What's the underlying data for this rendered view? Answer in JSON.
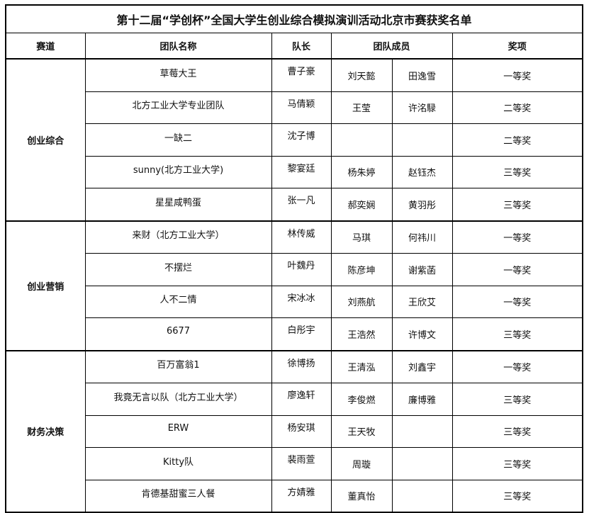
{
  "title": "第十二届“学创杯”全国大学生创业综合模拟演训活动北京市赛获奖名单",
  "headers": {
    "track": "赛道",
    "team": "团队名称",
    "captain": "队长",
    "members": "团队成员",
    "award": "奖项"
  },
  "groups": [
    {
      "track": "创业综合",
      "rows": [
        {
          "team": "草莓大王",
          "captain": "曹子豪",
          "m1": "刘天懿",
          "m2": "田逸雪",
          "award": "一等奖"
        },
        {
          "team": "北方工业大学专业团队",
          "captain": "马倩颖",
          "m1": "王莹",
          "m2": "许洺騄",
          "award": "二等奖"
        },
        {
          "team": "一缺二",
          "captain": "沈子博",
          "m1": "",
          "m2": "",
          "award": "二等奖"
        },
        {
          "team": "sunny(北方工业大学)",
          "captain": "黎宴廷",
          "m1": "杨朱婷",
          "m2": "赵钰杰",
          "award": "三等奖"
        },
        {
          "team": "星星咸鸭蛋",
          "captain": "张一凡",
          "m1": "郝奕娴",
          "m2": "黄羽彤",
          "award": "三等奖"
        }
      ]
    },
    {
      "track": "创业营销",
      "rows": [
        {
          "team": "来财（北方工业大学）",
          "captain": "林传威",
          "m1": "马琪",
          "m2": "何祎川",
          "award": "一等奖"
        },
        {
          "team": "不摆烂",
          "captain": "叶魏丹",
          "m1": "陈彦坤",
          "m2": "谢紫菡",
          "award": "一等奖"
        },
        {
          "team": "人不二情",
          "captain": "宋冰冰",
          "m1": "刘燕航",
          "m2": "王欣艾",
          "award": "一等奖"
        },
        {
          "team": "6677",
          "captain": "白彤宇",
          "m1": "王浩然",
          "m2": "许博文",
          "award": "三等奖"
        }
      ]
    },
    {
      "track": "财务决策",
      "rows": [
        {
          "team": "百万富翁1",
          "captain": "徐博扬",
          "m1": "王清泓",
          "m2": "刘鑫宇",
          "award": "一等奖"
        },
        {
          "team": "我竟无言以队（北方工业大学）",
          "captain": "廖逸轩",
          "m1": "李俊燃",
          "m2": "廉博雅",
          "award": "三等奖"
        },
        {
          "team": "ERW",
          "captain": "杨安琪",
          "m1": "王天牧",
          "m2": "",
          "award": "三等奖"
        },
        {
          "team": "Kitty队",
          "captain": "裴雨萱",
          "m1": "周璇",
          "m2": "",
          "award": "三等奖"
        },
        {
          "team": "肯德基甜蜜三人餐",
          "captain": "方婧雅",
          "m1": "董真怡",
          "m2": "",
          "award": "三等奖"
        }
      ]
    }
  ]
}
